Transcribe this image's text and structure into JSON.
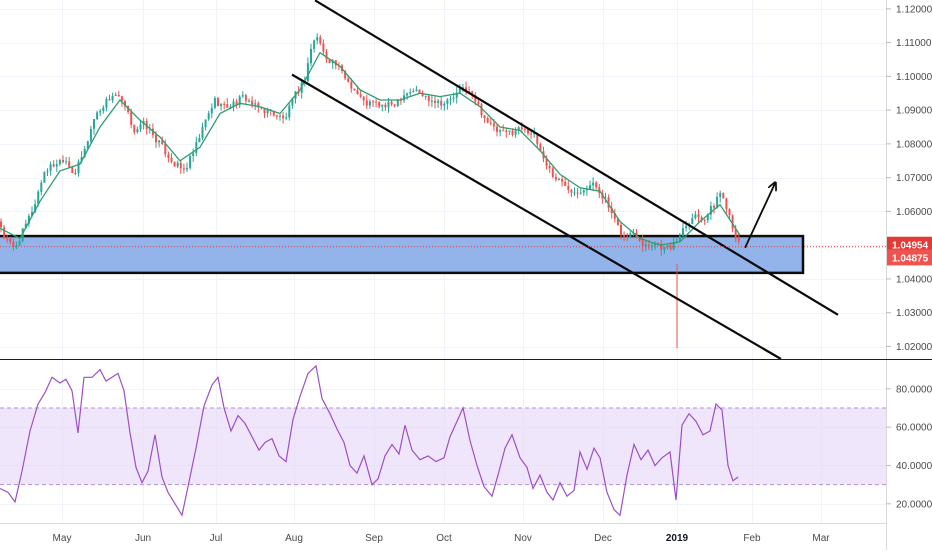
{
  "chart_data": [
    {
      "type": "candlestick",
      "title": "",
      "x_ticks": [
        {
          "label": "May",
          "bold": false
        },
        {
          "label": "Jun",
          "bold": false
        },
        {
          "label": "Jul",
          "bold": false
        },
        {
          "label": "Aug",
          "bold": false
        },
        {
          "label": "Sep",
          "bold": false
        },
        {
          "label": "Oct",
          "bold": false
        },
        {
          "label": "Nov",
          "bold": false
        },
        {
          "label": "Dec",
          "bold": false
        },
        {
          "label": "2019",
          "bold": true
        },
        {
          "label": "Feb",
          "bold": false
        },
        {
          "label": "Mar",
          "bold": false
        }
      ],
      "y_ticks": [
        "1.12000",
        "1.11000",
        "1.10000",
        "1.09000",
        "1.08000",
        "1.07000",
        "1.06000",
        "1.05000",
        "1.04000",
        "1.03000",
        "1.02000"
      ],
      "y_tick_values": [
        1.12,
        1.11,
        1.1,
        1.09,
        1.08,
        1.07,
        1.06,
        1.05,
        1.04,
        1.03,
        1.02
      ],
      "ylim": [
        1.0163,
        1.1226
      ],
      "price_labels": [
        {
          "text": "1.04954",
          "value": 1.04954,
          "color": "#e53935"
        },
        {
          "text": "1.04875",
          "value": 1.04875,
          "color": "#ef5350"
        }
      ],
      "up_color": "#26a69a",
      "down_color": "#ef5350",
      "moving_average_color": "#2e9e6e",
      "price_path": [
        [
          0,
          1.057
        ],
        [
          5,
          1.052
        ],
        [
          15,
          1.049
        ],
        [
          25,
          1.055
        ],
        [
          35,
          1.062
        ],
        [
          45,
          1.072
        ],
        [
          55,
          1.074
        ],
        [
          65,
          1.076
        ],
        [
          75,
          1.071
        ],
        [
          85,
          1.078
        ],
        [
          95,
          1.088
        ],
        [
          105,
          1.092
        ],
        [
          115,
          1.095
        ],
        [
          125,
          1.091
        ],
        [
          135,
          1.084
        ],
        [
          145,
          1.086
        ],
        [
          155,
          1.082
        ],
        [
          165,
          1.078
        ],
        [
          175,
          1.074
        ],
        [
          185,
          1.072
        ],
        [
          195,
          1.078
        ],
        [
          205,
          1.086
        ],
        [
          215,
          1.093
        ],
        [
          225,
          1.091
        ],
        [
          235,
          1.092
        ],
        [
          245,
          1.094
        ],
        [
          255,
          1.091
        ],
        [
          265,
          1.09
        ],
        [
          275,
          1.089
        ],
        [
          285,
          1.087
        ],
        [
          295,
          1.094
        ],
        [
          305,
          1.099
        ],
        [
          312,
          1.109
        ],
        [
          318,
          1.112
        ],
        [
          325,
          1.106
        ],
        [
          335,
          1.104
        ],
        [
          345,
          1.1
        ],
        [
          355,
          1.096
        ],
        [
          365,
          1.092
        ],
        [
          375,
          1.092
        ],
        [
          385,
          1.091
        ],
        [
          395,
          1.092
        ],
        [
          405,
          1.095
        ],
        [
          415,
          1.096
        ],
        [
          425,
          1.094
        ],
        [
          435,
          1.093
        ],
        [
          445,
          1.092
        ],
        [
          455,
          1.094
        ],
        [
          465,
          1.097
        ],
        [
          475,
          1.093
        ],
        [
          485,
          1.088
        ],
        [
          495,
          1.084
        ],
        [
          505,
          1.083
        ],
        [
          515,
          1.084
        ],
        [
          525,
          1.085
        ],
        [
          535,
          1.082
        ],
        [
          545,
          1.075
        ],
        [
          555,
          1.07
        ],
        [
          565,
          1.068
        ],
        [
          575,
          1.066
        ],
        [
          585,
          1.067
        ],
        [
          595,
          1.068
        ],
        [
          605,
          1.064
        ],
        [
          615,
          1.057
        ],
        [
          625,
          1.052
        ],
        [
          635,
          1.054
        ],
        [
          645,
          1.05
        ],
        [
          655,
          1.051
        ],
        [
          665,
          1.049
        ],
        [
          675,
          1.05
        ],
        [
          685,
          1.056
        ],
        [
          695,
          1.059
        ],
        [
          705,
          1.058
        ],
        [
          715,
          1.062
        ],
        [
          720,
          1.066
        ],
        [
          728,
          1.061
        ],
        [
          735,
          1.054
        ],
        [
          740,
          1.0495
        ]
      ],
      "ma_path": [
        [
          0,
          1.055
        ],
        [
          20,
          1.052
        ],
        [
          40,
          1.063
        ],
        [
          60,
          1.072
        ],
        [
          80,
          1.074
        ],
        [
          100,
          1.085
        ],
        [
          120,
          1.093
        ],
        [
          140,
          1.087
        ],
        [
          160,
          1.082
        ],
        [
          180,
          1.075
        ],
        [
          200,
          1.079
        ],
        [
          220,
          1.089
        ],
        [
          240,
          1.092
        ],
        [
          260,
          1.091
        ],
        [
          280,
          1.089
        ],
        [
          300,
          1.096
        ],
        [
          320,
          1.107
        ],
        [
          340,
          1.103
        ],
        [
          360,
          1.096
        ],
        [
          380,
          1.093
        ],
        [
          400,
          1.093
        ],
        [
          420,
          1.095
        ],
        [
          440,
          1.094
        ],
        [
          460,
          1.095
        ],
        [
          480,
          1.091
        ],
        [
          500,
          1.085
        ],
        [
          520,
          1.084
        ],
        [
          540,
          1.078
        ],
        [
          560,
          1.071
        ],
        [
          580,
          1.067
        ],
        [
          600,
          1.066
        ],
        [
          620,
          1.057
        ],
        [
          640,
          1.052
        ],
        [
          660,
          1.05
        ],
        [
          680,
          1.051
        ],
        [
          700,
          1.057
        ],
        [
          720,
          1.062
        ],
        [
          740,
          1.053
        ]
      ],
      "spike_low": {
        "position": 677,
        "value": 1.0195
      },
      "support_zone": {
        "from": 1.0418,
        "to": 1.0527,
        "color": "#7fa7e6"
      },
      "trend_lines": [
        {
          "from": [
            315,
            1.1225
          ],
          "to": [
            838,
            1.0294
          ]
        },
        {
          "from": [
            292,
            1.1005
          ],
          "to": [
            781,
            1.0163
          ]
        }
      ],
      "arrow": {
        "from": [
          745,
          1.0492
        ],
        "to": [
          775,
          1.0683
        ]
      }
    },
    {
      "type": "line",
      "title": "",
      "indicator": "oscillator",
      "y_ticks": [
        "80.0000",
        "60.0000",
        "40.0000",
        "20.0000"
      ],
      "y_tick_values": [
        80,
        60,
        40,
        20
      ],
      "ylim": [
        10,
        95
      ],
      "band": {
        "from": 30,
        "to": 70,
        "color": "#e3d2f7"
      },
      "line_color": "#9c4fc8",
      "values": [
        [
          0,
          28
        ],
        [
          8,
          26
        ],
        [
          15,
          21
        ],
        [
          22,
          37
        ],
        [
          30,
          58
        ],
        [
          38,
          72
        ],
        [
          45,
          78
        ],
        [
          52,
          86
        ],
        [
          60,
          83
        ],
        [
          66,
          85
        ],
        [
          72,
          79
        ],
        [
          78,
          57
        ],
        [
          84,
          86
        ],
        [
          92,
          86
        ],
        [
          100,
          90
        ],
        [
          106,
          84
        ],
        [
          112,
          86
        ],
        [
          118,
          88
        ],
        [
          124,
          79
        ],
        [
          130,
          57
        ],
        [
          136,
          39
        ],
        [
          142,
          31
        ],
        [
          148,
          37
        ],
        [
          155,
          56
        ],
        [
          162,
          34
        ],
        [
          168,
          26
        ],
        [
          175,
          20
        ],
        [
          182,
          14
        ],
        [
          188,
          29
        ],
        [
          196,
          49
        ],
        [
          204,
          71
        ],
        [
          212,
          82
        ],
        [
          218,
          86
        ],
        [
          224,
          70
        ],
        [
          231,
          58
        ],
        [
          238,
          66
        ],
        [
          245,
          62
        ],
        [
          252,
          55
        ],
        [
          259,
          48
        ],
        [
          265,
          52
        ],
        [
          272,
          54
        ],
        [
          279,
          45
        ],
        [
          286,
          42
        ],
        [
          293,
          64
        ],
        [
          300,
          76
        ],
        [
          308,
          88
        ],
        [
          316,
          92
        ],
        [
          322,
          75
        ],
        [
          330,
          67
        ],
        [
          337,
          59
        ],
        [
          344,
          52
        ],
        [
          350,
          40
        ],
        [
          357,
          36
        ],
        [
          364,
          45
        ],
        [
          372,
          30
        ],
        [
          378,
          33
        ],
        [
          385,
          45
        ],
        [
          392,
          51
        ],
        [
          399,
          46
        ],
        [
          405,
          61
        ],
        [
          412,
          48
        ],
        [
          420,
          43
        ],
        [
          428,
          45
        ],
        [
          436,
          42
        ],
        [
          444,
          44
        ],
        [
          450,
          55
        ],
        [
          457,
          63
        ],
        [
          463,
          70
        ],
        [
          470,
          53
        ],
        [
          477,
          40
        ],
        [
          484,
          29
        ],
        [
          492,
          24
        ],
        [
          498,
          35
        ],
        [
          505,
          49
        ],
        [
          512,
          56
        ],
        [
          520,
          44
        ],
        [
          527,
          39
        ],
        [
          533,
          28
        ],
        [
          540,
          35
        ],
        [
          547,
          26
        ],
        [
          553,
          22
        ],
        [
          560,
          31
        ],
        [
          567,
          24
        ],
        [
          574,
          27
        ],
        [
          580,
          47
        ],
        [
          587,
          38
        ],
        [
          594,
          49
        ],
        [
          600,
          44
        ],
        [
          607,
          26
        ],
        [
          614,
          17
        ],
        [
          620,
          14
        ],
        [
          627,
          35
        ],
        [
          634,
          51
        ],
        [
          641,
          43
        ],
        [
          648,
          48
        ],
        [
          655,
          40
        ],
        [
          662,
          44
        ],
        [
          670,
          47
        ],
        [
          676,
          22
        ],
        [
          682,
          61
        ],
        [
          689,
          67
        ],
        [
          696,
          63
        ],
        [
          703,
          56
        ],
        [
          710,
          58
        ],
        [
          716,
          72
        ],
        [
          722,
          69
        ],
        [
          728,
          40
        ],
        [
          733,
          32
        ],
        [
          738,
          34
        ]
      ]
    }
  ]
}
